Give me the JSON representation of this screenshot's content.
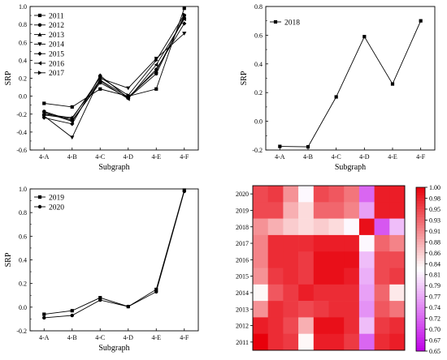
{
  "chart_data": [
    {
      "type": "line",
      "xlabel": "Subgraph",
      "ylabel": "SRP",
      "categories": [
        "4-A",
        "4-B",
        "4-C",
        "4-D",
        "4-E",
        "4-F"
      ],
      "ylim": [
        -0.6,
        1.0
      ],
      "yticks": [
        "-0.6",
        "-0.4",
        "-0.2",
        "0.0",
        "0.2",
        "0.4",
        "0.6",
        "0.8",
        "1.0"
      ],
      "legend_position": "top-left",
      "series": [
        {
          "name": "2011",
          "marker": "square",
          "values": [
            -0.08,
            -0.12,
            0.08,
            0.0,
            0.08,
            0.98
          ]
        },
        {
          "name": "2012",
          "marker": "circle",
          "values": [
            -0.17,
            -0.27,
            0.15,
            -0.02,
            0.25,
            0.9
          ]
        },
        {
          "name": "2013",
          "marker": "triangle-up",
          "values": [
            -0.2,
            -0.24,
            0.18,
            -0.01,
            0.28,
            0.88
          ]
        },
        {
          "name": "2014",
          "marker": "triangle-down",
          "values": [
            -0.22,
            -0.46,
            0.2,
            0.09,
            0.42,
            0.7
          ]
        },
        {
          "name": "2015",
          "marker": "diamond",
          "values": [
            -0.24,
            -0.31,
            0.23,
            -0.02,
            0.3,
            0.81
          ]
        },
        {
          "name": "2016",
          "marker": "triangle-left",
          "values": [
            -0.18,
            -0.28,
            0.17,
            -0.03,
            0.35,
            0.86
          ]
        },
        {
          "name": "2017",
          "marker": "triangle-right",
          "values": [
            -0.21,
            -0.25,
            0.21,
            0.01,
            0.4,
            0.91
          ]
        }
      ]
    },
    {
      "type": "line",
      "xlabel": "Subgraph",
      "ylabel": "SRP",
      "categories": [
        "4-A",
        "4-B",
        "4-C",
        "4-D",
        "4-E",
        "4-F"
      ],
      "ylim": [
        -0.2,
        0.8
      ],
      "yticks": [
        "-0.2",
        "0.0",
        "0.2",
        "0.4",
        "0.6",
        "0.8"
      ],
      "legend_position": "top-left",
      "series": [
        {
          "name": "2018",
          "marker": "square",
          "values": [
            -0.175,
            -0.178,
            0.17,
            0.59,
            0.26,
            0.7
          ]
        }
      ]
    },
    {
      "type": "line",
      "xlabel": "Subgraph",
      "ylabel": "SRP",
      "categories": [
        "4-A",
        "4-B",
        "4-C",
        "4-D",
        "4-E",
        "4-F"
      ],
      "ylim": [
        -0.2,
        1.0
      ],
      "yticks": [
        "-0.2",
        "0.0",
        "0.2",
        "0.4",
        "0.6",
        "0.8",
        "1.0"
      ],
      "legend_position": "top-left",
      "series": [
        {
          "name": "2019",
          "marker": "square",
          "values": [
            -0.06,
            -0.03,
            0.08,
            0.005,
            0.15,
            0.99
          ]
        },
        {
          "name": "2020",
          "marker": "circle",
          "values": [
            -0.09,
            -0.07,
            0.06,
            0.005,
            0.13,
            0.98
          ]
        }
      ]
    },
    {
      "type": "heatmap",
      "rows": [
        "2020",
        "2019",
        "2018",
        "2017",
        "2016",
        "2015",
        "2014",
        "2013",
        "2012",
        "2011"
      ],
      "vmin": 0.65,
      "vmax": 1.0,
      "colorbar_ticks": [
        "1.00",
        "0.98",
        "0.95",
        "0.93",
        "0.91",
        "0.88",
        "0.86",
        "0.84",
        "0.81",
        "0.79",
        "0.77",
        "0.74",
        "0.72",
        "0.70",
        "0.67",
        "0.65"
      ],
      "colormap": [
        "#c000e8",
        "#ffffff",
        "#e8000b"
      ],
      "values": [
        [
          0.95,
          0.96,
          0.9,
          0.82,
          0.95,
          0.94,
          0.92,
          0.72,
          0.98,
          0.98
        ],
        [
          0.95,
          0.95,
          0.88,
          0.85,
          0.93,
          0.93,
          0.91,
          0.76,
          0.98,
          0.98
        ],
        [
          0.9,
          0.88,
          0.86,
          0.85,
          0.86,
          0.85,
          0.82,
          0.99,
          0.71,
          0.78
        ],
        [
          0.91,
          0.97,
          0.97,
          0.97,
          0.98,
          0.98,
          0.98,
          0.82,
          0.93,
          0.91
        ],
        [
          0.91,
          0.97,
          0.97,
          0.96,
          0.99,
          0.99,
          0.99,
          0.78,
          0.95,
          0.95
        ],
        [
          0.9,
          0.96,
          0.97,
          0.96,
          0.99,
          0.99,
          0.98,
          0.77,
          0.95,
          0.96
        ],
        [
          0.83,
          0.94,
          0.96,
          0.98,
          0.97,
          0.97,
          0.97,
          0.76,
          0.93,
          0.84
        ],
        [
          0.9,
          0.97,
          0.96,
          0.95,
          0.96,
          0.97,
          0.97,
          0.75,
          0.94,
          0.92
        ],
        [
          0.98,
          0.97,
          0.95,
          0.88,
          0.99,
          0.99,
          0.97,
          0.78,
          0.96,
          0.97
        ],
        [
          1.0,
          0.97,
          0.96,
          0.83,
          0.98,
          0.98,
          0.96,
          0.72,
          0.97,
          0.98
        ]
      ]
    }
  ]
}
